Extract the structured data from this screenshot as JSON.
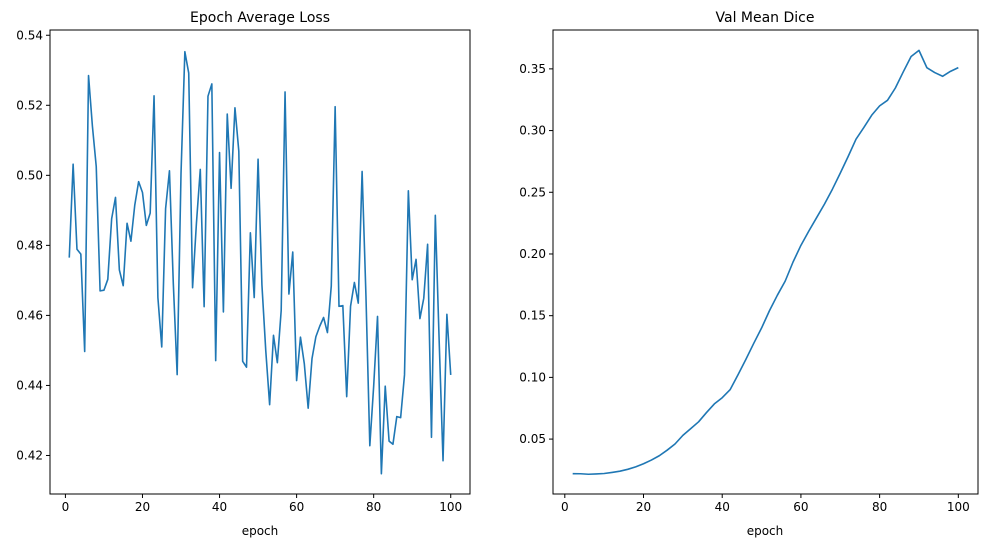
{
  "chart_data": [
    {
      "type": "line",
      "title": "Epoch Average Loss",
      "xlabel": "epoch",
      "ylabel": "",
      "xlim": [
        -4,
        105
      ],
      "ylim": [
        0.409,
        0.5415
      ],
      "xticks": [
        0,
        20,
        40,
        60,
        80,
        100
      ],
      "yticks": [
        0.42,
        0.44,
        0.46,
        0.48,
        0.5,
        0.52,
        0.54
      ],
      "ytick_decimals": 2,
      "grid": false,
      "color": "#1f77b4",
      "series": [
        {
          "x": [
            1,
            2,
            3,
            4,
            5,
            6,
            7,
            8,
            9,
            10,
            11,
            12,
            13,
            14,
            15,
            16,
            17,
            18,
            19,
            20,
            21,
            22,
            23,
            24,
            25,
            26,
            27,
            28,
            29,
            30,
            31,
            32,
            33,
            34,
            35,
            36,
            37,
            38,
            39,
            40,
            41,
            42,
            43,
            44,
            45,
            46,
            47,
            48,
            49,
            50,
            51,
            52,
            53,
            54,
            55,
            56,
            57,
            58,
            59,
            60,
            61,
            62,
            63,
            64,
            65,
            66,
            67,
            68,
            69,
            70,
            71,
            72,
            73,
            74,
            75,
            76,
            77,
            78,
            79,
            80,
            81,
            82,
            83,
            84,
            85,
            86,
            87,
            88,
            89,
            90,
            91,
            92,
            93,
            94,
            95,
            96,
            97,
            98,
            99,
            100
          ],
          "values": [
            0.4765,
            0.5032,
            0.4789,
            0.4775,
            0.4497,
            0.5285,
            0.5141,
            0.5025,
            0.467,
            0.4672,
            0.4703,
            0.4876,
            0.4937,
            0.473,
            0.4685,
            0.4863,
            0.4812,
            0.4915,
            0.4982,
            0.4951,
            0.4857,
            0.4892,
            0.5227,
            0.4651,
            0.451,
            0.4905,
            0.5013,
            0.4692,
            0.4431,
            0.5005,
            0.5353,
            0.5292,
            0.4679,
            0.4863,
            0.5017,
            0.4625,
            0.5226,
            0.5261,
            0.4471,
            0.5065,
            0.461,
            0.5175,
            0.4963,
            0.5193,
            0.5069,
            0.4469,
            0.4452,
            0.4836,
            0.4651,
            0.5046,
            0.4687,
            0.4499,
            0.4345,
            0.4543,
            0.4465,
            0.4614,
            0.5238,
            0.4661,
            0.4781,
            0.4414,
            0.4538,
            0.4462,
            0.4335,
            0.4477,
            0.4539,
            0.4569,
            0.4594,
            0.4551,
            0.4684,
            0.5196,
            0.4626,
            0.4628,
            0.4368,
            0.4626,
            0.4694,
            0.4635,
            0.5011,
            0.4655,
            0.4228,
            0.4398,
            0.4597,
            0.4148,
            0.4398,
            0.4241,
            0.4232,
            0.4311,
            0.4308,
            0.443,
            0.4956,
            0.4702,
            0.476,
            0.4591,
            0.4649,
            0.4803,
            0.4252,
            0.4886,
            0.4527,
            0.4185,
            0.4603,
            0.443
          ]
        }
      ]
    },
    {
      "type": "line",
      "title": "Val Mean Dice",
      "xlabel": "epoch",
      "ylabel": "",
      "xlim": [
        -3,
        105
      ],
      "ylim": [
        0.0055,
        0.3815
      ],
      "xticks": [
        0,
        20,
        40,
        60,
        80,
        100
      ],
      "yticks": [
        0.05,
        0.1,
        0.15,
        0.2,
        0.25,
        0.3,
        0.35
      ],
      "ytick_decimals": 2,
      "grid": false,
      "color": "#1f77b4",
      "series": [
        {
          "x": [
            2,
            4,
            6,
            8,
            10,
            12,
            14,
            16,
            18,
            20,
            22,
            24,
            26,
            28,
            30,
            32,
            34,
            36,
            38,
            40,
            42,
            44,
            46,
            48,
            50,
            52,
            54,
            56,
            58,
            60,
            62,
            64,
            66,
            68,
            70,
            72,
            74,
            76,
            78,
            80,
            82,
            84,
            86,
            88,
            90,
            92,
            94,
            96,
            98,
            100
          ],
          "values": [
            0.022,
            0.0219,
            0.0215,
            0.0218,
            0.0221,
            0.023,
            0.024,
            0.0255,
            0.0275,
            0.03,
            0.033,
            0.0365,
            0.041,
            0.046,
            0.053,
            0.0585,
            0.064,
            0.0715,
            0.0785,
            0.0835,
            0.09,
            0.102,
            0.1145,
            0.1275,
            0.14,
            0.154,
            0.1665,
            0.178,
            0.1935,
            0.207,
            0.2185,
            0.2295,
            0.2405,
            0.2525,
            0.2655,
            0.279,
            0.293,
            0.3025,
            0.3125,
            0.32,
            0.3245,
            0.3345,
            0.3475,
            0.36,
            0.365,
            0.351,
            0.347,
            0.344,
            0.348,
            0.351
          ]
        }
      ]
    }
  ]
}
